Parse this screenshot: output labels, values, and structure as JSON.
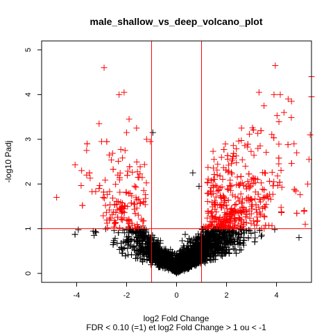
{
  "chart_data": {
    "type": "scatter",
    "title": "male_shallow_vs_deep_volcano_plot",
    "xlabel": "log2 Fold Change",
    "xlabel2": "FDR < 0.10 (=1) et log2 Fold Change > 1 ou < -1",
    "ylabel": "-log10 Padj",
    "xlim": [
      -5.4,
      5.4
    ],
    "ylim": [
      -0.2,
      5.2
    ],
    "x_ticks": [
      -4,
      -2,
      0,
      2,
      4
    ],
    "x_tick_labels": [
      "-4",
      "-2",
      "0",
      "2",
      "4"
    ],
    "y_ticks": [
      0,
      1,
      2,
      3,
      4,
      5
    ],
    "y_tick_labels": [
      "0",
      "1",
      "2",
      "3",
      "4",
      "5"
    ],
    "marker": "+",
    "grid": false,
    "threshold_lines": {
      "x": [
        -1,
        1
      ],
      "y": [
        1
      ]
    },
    "colors": {
      "significant": "#ff0000",
      "not_significant": "#000000",
      "threshold": "#ff0000"
    },
    "highlighted_points": [
      {
        "x": -4.8,
        "y": 1.7,
        "color": "#ff0000"
      },
      {
        "x": -2.9,
        "y": 4.6,
        "color": "#ff0000"
      },
      {
        "x": -2.3,
        "y": 4.0,
        "color": "#ff0000"
      },
      {
        "x": -2.1,
        "y": 4.05,
        "color": "#ff0000"
      },
      {
        "x": -1.9,
        "y": 3.45,
        "color": "#ff0000"
      },
      {
        "x": -3.1,
        "y": 3.35,
        "color": "#ff0000"
      },
      {
        "x": -3.0,
        "y": 2.95,
        "color": "#ff0000"
      },
      {
        "x": -2.0,
        "y": 3.15,
        "color": "#ff0000"
      },
      {
        "x": -1.6,
        "y": 3.25,
        "color": "#ff0000"
      },
      {
        "x": -1.2,
        "y": 3.0,
        "color": "#ff0000"
      },
      {
        "x": -1.05,
        "y": 2.95,
        "color": "#ff0000"
      },
      {
        "x": -0.95,
        "y": 3.15,
        "color": "#000000"
      },
      {
        "x": -3.6,
        "y": 2.75,
        "color": "#ff0000"
      },
      {
        "x": -3.8,
        "y": 2.3,
        "color": "#ff0000"
      },
      {
        "x": -3.6,
        "y": 2.2,
        "color": "#ff0000"
      },
      {
        "x": 3.95,
        "y": 4.65,
        "color": "#ff0000"
      },
      {
        "x": 3.3,
        "y": 4.05,
        "color": "#ff0000"
      },
      {
        "x": 3.9,
        "y": 4.0,
        "color": "#ff0000"
      },
      {
        "x": 4.15,
        "y": 4.0,
        "color": "#ff0000"
      },
      {
        "x": 4.6,
        "y": 3.85,
        "color": "#ff0000"
      },
      {
        "x": 5.4,
        "y": 4.4,
        "color": "#ff0000"
      },
      {
        "x": 5.4,
        "y": 3.95,
        "color": "#ff0000"
      },
      {
        "x": 5.35,
        "y": 3.1,
        "color": "#ff0000"
      },
      {
        "x": 5.3,
        "y": 2.55,
        "color": "#ff0000"
      },
      {
        "x": 5.25,
        "y": 2.0,
        "color": "#ff0000"
      },
      {
        "x": 5.15,
        "y": 1.1,
        "color": "#ff0000"
      },
      {
        "x": 3.5,
        "y": 3.75,
        "color": "#ff0000"
      },
      {
        "x": 4.3,
        "y": 3.6,
        "color": "#ff0000"
      },
      {
        "x": 2.6,
        "y": 3.25,
        "color": "#ff0000"
      },
      {
        "x": 4.7,
        "y": 2.9,
        "color": "#ff0000"
      },
      {
        "x": 0.65,
        "y": 2.25,
        "color": "#000000"
      },
      {
        "x": 0.9,
        "y": 1.95,
        "color": "#000000"
      },
      {
        "x": 1.5,
        "y": 2.55,
        "color": "#ff0000"
      },
      {
        "x": 5.45,
        "y": 0.75,
        "color": "#000000"
      },
      {
        "x": 4.9,
        "y": 0.8,
        "color": "#000000"
      },
      {
        "x": -3.3,
        "y": 0.85,
        "color": "#000000"
      }
    ],
    "background_cloud": {
      "description": "Several thousand genes forming a V shaped cloud; points with Padj-score > 1 and |log2FC| > 1 are red, the rest black",
      "n_points": 3200,
      "x_spread": [
        -4.0,
        5.0
      ],
      "right_skew": true
    }
  }
}
